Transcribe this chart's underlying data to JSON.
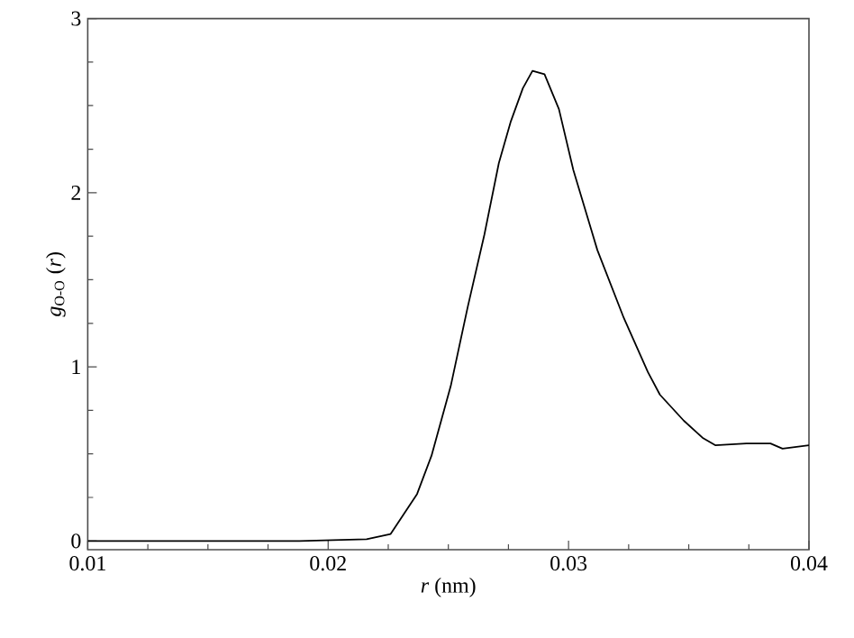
{
  "chart_data": {
    "type": "line",
    "xlabel": "*r* (nm)",
    "ylabel": "*g*$_{O-O}$ (*r*)",
    "xlim": [
      0.01,
      0.04
    ],
    "ylim": [
      -0.05,
      3
    ],
    "xticks": [
      0.01,
      0.02,
      0.03,
      0.04
    ],
    "yticks": [
      0,
      1,
      2,
      3
    ],
    "series": [
      {
        "color": "#000000",
        "x": [
          0.01,
          0.0188,
          0.0216,
          0.0226,
          0.0237,
          0.0243,
          0.0251,
          0.0258,
          0.0265,
          0.0271,
          0.0276,
          0.0281,
          0.0285,
          0.029,
          0.0296,
          0.0302,
          0.0312,
          0.0323,
          0.0333,
          0.0338,
          0.0348,
          0.0356,
          0.0361,
          0.0374,
          0.0384,
          0.0389,
          0.04
        ],
        "values": [
          0,
          0,
          0.01,
          0.04,
          0.27,
          0.49,
          0.89,
          1.34,
          1.76,
          2.17,
          2.41,
          2.6,
          2.7,
          2.68,
          2.48,
          2.13,
          1.67,
          1.28,
          0.97,
          0.84,
          0.69,
          0.59,
          0.55,
          0.56,
          0.56,
          0.53,
          0.55
        ]
      }
    ],
    "marker": "none",
    "line_style": "solid"
  }
}
